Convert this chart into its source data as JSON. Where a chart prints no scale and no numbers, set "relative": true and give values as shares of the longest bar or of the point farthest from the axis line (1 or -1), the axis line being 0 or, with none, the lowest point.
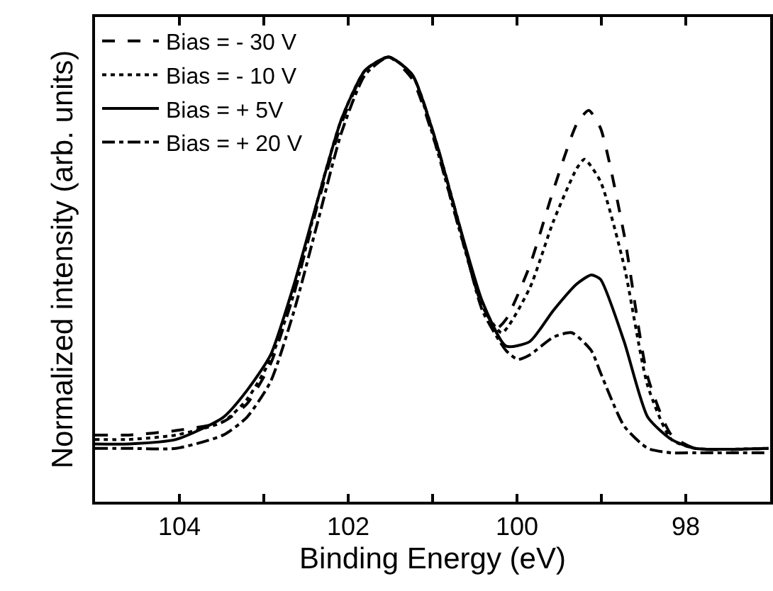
{
  "chart_data": {
    "type": "line",
    "relative": true,
    "xlabel": "Binding Energy (eV)",
    "ylabel": "Normalized intensity (arb. units)",
    "xlim": [
      105,
      97
    ],
    "xticks": [
      104,
      {
        "value": 103,
        "label": null
      },
      102,
      {
        "value": 101,
        "label": null
      },
      100,
      {
        "value": 99,
        "label": null
      },
      98
    ],
    "legend": "top left",
    "grid": false,
    "series": [
      {
        "name": "Bias = - 30 V",
        "color": "#000000",
        "line_style": "dashed",
        "x": [
          105,
          104.6,
          104.04,
          103.48,
          103.2,
          102.92,
          102.64,
          102.36,
          102.08,
          101.8,
          101.52,
          101.24,
          100.96,
          100.68,
          100.41,
          100.24,
          100.13,
          99.85,
          99.57,
          99.29,
          99.15,
          99.01,
          98.73,
          98.45,
          98.17,
          97.89,
          97.02
        ],
        "values": [
          0.15,
          0.15,
          0.16,
          0.18,
          0.22,
          0.31,
          0.47,
          0.67,
          0.85,
          0.97,
          1.0,
          0.95,
          0.8,
          0.61,
          0.44,
          0.39,
          0.41,
          0.53,
          0.7,
          0.85,
          0.88,
          0.84,
          0.6,
          0.28,
          0.15,
          0.12,
          0.12
        ]
      },
      {
        "name": "Bias = - 10 V",
        "color": "#000000",
        "line_style": "dotted",
        "x": [
          105,
          104.6,
          104.04,
          103.48,
          103.2,
          102.92,
          102.64,
          102.36,
          102.08,
          101.8,
          101.52,
          101.24,
          100.96,
          100.68,
          100.41,
          100.18,
          99.85,
          99.57,
          99.29,
          99.2,
          99.01,
          98.73,
          98.45,
          98.17,
          97.89,
          97.02
        ],
        "values": [
          0.14,
          0.14,
          0.15,
          0.18,
          0.23,
          0.32,
          0.47,
          0.68,
          0.86,
          0.97,
          1.0,
          0.96,
          0.8,
          0.61,
          0.44,
          0.38,
          0.48,
          0.63,
          0.75,
          0.77,
          0.72,
          0.53,
          0.26,
          0.14,
          0.12,
          0.12
        ]
      },
      {
        "name": "Bias = + 5V",
        "color": "#000000",
        "line_style": "solid",
        "x": [
          105,
          104.6,
          104.04,
          103.48,
          103.2,
          102.92,
          102.64,
          102.36,
          102.08,
          101.8,
          101.52,
          101.24,
          100.96,
          100.68,
          100.41,
          100.13,
          99.85,
          99.57,
          99.29,
          99.12,
          99.01,
          98.73,
          98.45,
          98.17,
          97.89,
          97.02
        ],
        "values": [
          0.13,
          0.13,
          0.14,
          0.19,
          0.25,
          0.33,
          0.49,
          0.68,
          0.86,
          0.97,
          1.0,
          0.96,
          0.81,
          0.62,
          0.45,
          0.35,
          0.36,
          0.43,
          0.49,
          0.51,
          0.5,
          0.36,
          0.19,
          0.14,
          0.12,
          0.12
        ]
      },
      {
        "name": "Bias = + 20 V",
        "color": "#000000",
        "line_style": "dashdot",
        "x": [
          105,
          104.6,
          104.04,
          103.48,
          103.2,
          102.92,
          102.64,
          102.36,
          102.08,
          101.8,
          101.52,
          101.24,
          100.96,
          100.68,
          100.41,
          100.13,
          99.99,
          99.85,
          99.57,
          99.35,
          99.12,
          99.01,
          98.73,
          98.45,
          98.17,
          97.89,
          97.02
        ],
        "values": [
          0.12,
          0.12,
          0.12,
          0.15,
          0.19,
          0.27,
          0.43,
          0.63,
          0.83,
          0.96,
          1.0,
          0.96,
          0.81,
          0.62,
          0.43,
          0.34,
          0.32,
          0.33,
          0.37,
          0.38,
          0.34,
          0.29,
          0.17,
          0.12,
          0.11,
          0.11,
          0.11
        ]
      }
    ]
  }
}
